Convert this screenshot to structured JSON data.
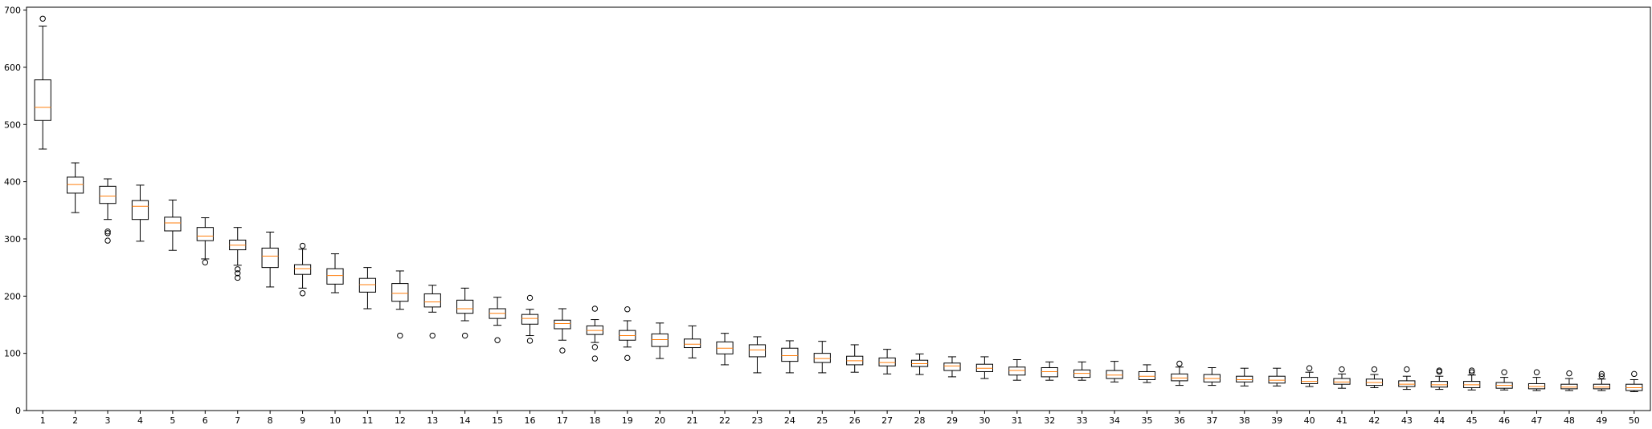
{
  "chart_data": {
    "type": "boxplot",
    "title": "",
    "xlabel": "",
    "ylabel": "",
    "ylim": [
      0,
      705
    ],
    "xlim": [
      0.5,
      50.5
    ],
    "yticks": [
      0,
      100,
      200,
      300,
      400,
      500,
      600,
      700
    ],
    "categories": [
      "1",
      "2",
      "3",
      "4",
      "5",
      "6",
      "7",
      "8",
      "9",
      "10",
      "11",
      "12",
      "13",
      "14",
      "15",
      "16",
      "17",
      "18",
      "19",
      "20",
      "21",
      "22",
      "23",
      "24",
      "25",
      "26",
      "27",
      "28",
      "29",
      "30",
      "31",
      "32",
      "33",
      "34",
      "35",
      "36",
      "37",
      "38",
      "39",
      "40",
      "41",
      "42",
      "43",
      "44",
      "45",
      "46",
      "47",
      "48",
      "49",
      "50"
    ],
    "grid": false,
    "colors": {
      "box": "#000000",
      "median": "#ff7f0e",
      "axes": "#000000",
      "background": "#ffffff"
    },
    "boxes": [
      {
        "whislo": 457,
        "q1": 507,
        "med": 530,
        "q3": 578,
        "whishi": 672,
        "fliers": [
          685
        ]
      },
      {
        "whislo": 346,
        "q1": 380,
        "med": 395,
        "q3": 408,
        "whishi": 433,
        "fliers": []
      },
      {
        "whislo": 334,
        "q1": 362,
        "med": 375,
        "q3": 392,
        "whishi": 405,
        "fliers": [
          313,
          310,
          297
        ]
      },
      {
        "whislo": 296,
        "q1": 334,
        "med": 357,
        "q3": 367,
        "whishi": 394,
        "fliers": []
      },
      {
        "whislo": 280,
        "q1": 314,
        "med": 328,
        "q3": 338,
        "whishi": 368,
        "fliers": []
      },
      {
        "whislo": 265,
        "q1": 297,
        "med": 305,
        "q3": 320,
        "whishi": 337,
        "fliers": [
          259
        ]
      },
      {
        "whislo": 254,
        "q1": 281,
        "med": 289,
        "q3": 298,
        "whishi": 320,
        "fliers": [
          247,
          240,
          232
        ]
      },
      {
        "whislo": 216,
        "q1": 250,
        "med": 270,
        "q3": 284,
        "whishi": 312,
        "fliers": []
      },
      {
        "whislo": 214,
        "q1": 238,
        "med": 248,
        "q3": 255,
        "whishi": 282,
        "fliers": [
          288,
          205
        ]
      },
      {
        "whislo": 206,
        "q1": 221,
        "med": 236,
        "q3": 248,
        "whishi": 274,
        "fliers": []
      },
      {
        "whislo": 178,
        "q1": 207,
        "med": 220,
        "q3": 231,
        "whishi": 250,
        "fliers": []
      },
      {
        "whislo": 177,
        "q1": 191,
        "med": 205,
        "q3": 222,
        "whishi": 244,
        "fliers": [
          131
        ]
      },
      {
        "whislo": 172,
        "q1": 181,
        "med": 190,
        "q3": 204,
        "whishi": 219,
        "fliers": [
          131
        ]
      },
      {
        "whislo": 157,
        "q1": 170,
        "med": 178,
        "q3": 193,
        "whishi": 214,
        "fliers": [
          131
        ]
      },
      {
        "whislo": 149,
        "q1": 161,
        "med": 170,
        "q3": 178,
        "whishi": 198,
        "fliers": [
          123
        ]
      },
      {
        "whislo": 131,
        "q1": 151,
        "med": 161,
        "q3": 168,
        "whishi": 177,
        "fliers": [
          197,
          122
        ]
      },
      {
        "whislo": 123,
        "q1": 143,
        "med": 152,
        "q3": 158,
        "whishi": 178,
        "fliers": [
          105
        ]
      },
      {
        "whislo": 119,
        "q1": 133,
        "med": 140,
        "q3": 148,
        "whishi": 159,
        "fliers": [
          178,
          111,
          91
        ]
      },
      {
        "whislo": 111,
        "q1": 123,
        "med": 131,
        "q3": 140,
        "whishi": 157,
        "fliers": [
          177,
          92
        ]
      },
      {
        "whislo": 91,
        "q1": 112,
        "med": 124,
        "q3": 134,
        "whishi": 153,
        "fliers": []
      },
      {
        "whislo": 92,
        "q1": 110,
        "med": 116,
        "q3": 125,
        "whishi": 148,
        "fliers": []
      },
      {
        "whislo": 80,
        "q1": 99,
        "med": 109,
        "q3": 120,
        "whishi": 135,
        "fliers": []
      },
      {
        "whislo": 66,
        "q1": 94,
        "med": 106,
        "q3": 115,
        "whishi": 129,
        "fliers": []
      },
      {
        "whislo": 66,
        "q1": 86,
        "med": 96,
        "q3": 109,
        "whishi": 122,
        "fliers": []
      },
      {
        "whislo": 66,
        "q1": 84,
        "med": 91,
        "q3": 100,
        "whishi": 121,
        "fliers": []
      },
      {
        "whislo": 67,
        "q1": 80,
        "med": 87,
        "q3": 95,
        "whishi": 115,
        "fliers": []
      },
      {
        "whislo": 64,
        "q1": 78,
        "med": 84,
        "q3": 92,
        "whishi": 107,
        "fliers": []
      },
      {
        "whislo": 63,
        "q1": 77,
        "med": 82,
        "q3": 88,
        "whishi": 99,
        "fliers": []
      },
      {
        "whislo": 59,
        "q1": 70,
        "med": 78,
        "q3": 83,
        "whishi": 94,
        "fliers": []
      },
      {
        "whislo": 56,
        "q1": 68,
        "med": 74,
        "q3": 81,
        "whishi": 94,
        "fliers": []
      },
      {
        "whislo": 53,
        "q1": 62,
        "med": 70,
        "q3": 76,
        "whishi": 89,
        "fliers": []
      },
      {
        "whislo": 53,
        "q1": 59,
        "med": 68,
        "q3": 75,
        "whishi": 85,
        "fliers": []
      },
      {
        "whislo": 53,
        "q1": 58,
        "med": 65,
        "q3": 71,
        "whishi": 85,
        "fliers": []
      },
      {
        "whislo": 50,
        "q1": 56,
        "med": 62,
        "q3": 70,
        "whishi": 86,
        "fliers": []
      },
      {
        "whislo": 49,
        "q1": 54,
        "med": 60,
        "q3": 68,
        "whishi": 80,
        "fliers": []
      },
      {
        "whislo": 44,
        "q1": 52,
        "med": 57,
        "q3": 64,
        "whishi": 76,
        "fliers": [
          82
        ]
      },
      {
        "whislo": 44,
        "q1": 50,
        "med": 56,
        "q3": 63,
        "whishi": 75,
        "fliers": []
      },
      {
        "whislo": 43,
        "q1": 50,
        "med": 54,
        "q3": 60,
        "whishi": 74,
        "fliers": []
      },
      {
        "whislo": 43,
        "q1": 48,
        "med": 53,
        "q3": 60,
        "whishi": 74,
        "fliers": []
      },
      {
        "whislo": 42,
        "q1": 47,
        "med": 51,
        "q3": 58,
        "whishi": 67,
        "fliers": [
          74
        ]
      },
      {
        "whislo": 39,
        "q1": 46,
        "med": 50,
        "q3": 56,
        "whishi": 64,
        "fliers": [
          72
        ]
      },
      {
        "whislo": 40,
        "q1": 44,
        "med": 49,
        "q3": 55,
        "whishi": 63,
        "fliers": [
          72
        ]
      },
      {
        "whislo": 37,
        "q1": 42,
        "med": 46,
        "q3": 52,
        "whishi": 60,
        "fliers": [
          72
        ]
      },
      {
        "whislo": 37,
        "q1": 41,
        "med": 45,
        "q3": 51,
        "whishi": 60,
        "fliers": [
          70,
          68
        ]
      },
      {
        "whislo": 36,
        "q1": 40,
        "med": 45,
        "q3": 51,
        "whishi": 62,
        "fliers": [
          70,
          67
        ]
      },
      {
        "whislo": 36,
        "q1": 39,
        "med": 44,
        "q3": 49,
        "whishi": 58,
        "fliers": [
          67
        ]
      },
      {
        "whislo": 35,
        "q1": 38,
        "med": 42,
        "q3": 47,
        "whishi": 58,
        "fliers": [
          67
        ]
      },
      {
        "whislo": 35,
        "q1": 38,
        "med": 41,
        "q3": 46,
        "whishi": 56,
        "fliers": [
          65
        ]
      },
      {
        "whislo": 35,
        "q1": 38,
        "med": 41,
        "q3": 46,
        "whishi": 55,
        "fliers": [
          64,
          60
        ]
      },
      {
        "whislo": 33,
        "q1": 35,
        "med": 40,
        "q3": 46,
        "whishi": 54,
        "fliers": [
          64
        ]
      }
    ]
  }
}
